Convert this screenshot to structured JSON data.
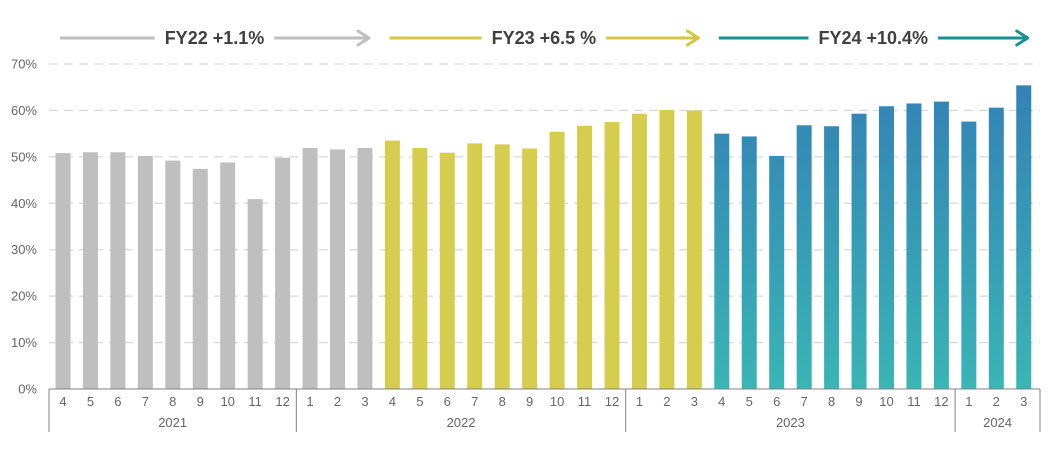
{
  "chart_data": {
    "type": "bar",
    "ylim": [
      0,
      70
    ],
    "yticks": [
      "0%",
      "10%",
      "20%",
      "30%",
      "40%",
      "50%",
      "60%",
      "70%"
    ],
    "grid": true,
    "categories": [
      "4",
      "5",
      "6",
      "7",
      "8",
      "9",
      "10",
      "11",
      "12",
      "1",
      "2",
      "3",
      "4",
      "5",
      "6",
      "7",
      "8",
      "9",
      "10",
      "11",
      "12",
      "1",
      "2",
      "3",
      "4",
      "5",
      "6",
      "7",
      "8",
      "9",
      "10",
      "11",
      "12",
      "1",
      "2",
      "3"
    ],
    "values": [
      50.8,
      51.0,
      51.0,
      50.2,
      49.2,
      47.4,
      48.8,
      40.9,
      49.8,
      51.9,
      51.6,
      51.9,
      53.5,
      51.9,
      50.9,
      52.9,
      52.7,
      51.8,
      55.4,
      56.7,
      57.5,
      59.3,
      60.1,
      60.0,
      55.0,
      54.4,
      50.2,
      56.8,
      56.6,
      59.3,
      60.9,
      61.5,
      61.9,
      57.6,
      60.6,
      65.4
    ],
    "color_groups": [
      "gray",
      "gray",
      "gray",
      "gray",
      "gray",
      "gray",
      "gray",
      "gray",
      "gray",
      "gray",
      "gray",
      "gray",
      "yellow",
      "yellow",
      "yellow",
      "yellow",
      "yellow",
      "yellow",
      "yellow",
      "yellow",
      "yellow",
      "yellow",
      "yellow",
      "yellow",
      "teal",
      "teal",
      "teal",
      "teal",
      "teal",
      "teal",
      "teal",
      "teal",
      "teal",
      "teal",
      "teal",
      "teal"
    ],
    "years": [
      {
        "label": "2021",
        "start": 0,
        "end": 8
      },
      {
        "label": "2022",
        "start": 9,
        "end": 20
      },
      {
        "label": "2023",
        "start": 21,
        "end": 32
      },
      {
        "label": "2024",
        "start": 33,
        "end": 35
      }
    ],
    "bands": [
      {
        "label": "FY22 +1.1%",
        "start": 0,
        "end": 11,
        "color": "#bfbfbf"
      },
      {
        "label": "FY23 +6.5 %",
        "start": 12,
        "end": 23,
        "color": "#d2c845"
      },
      {
        "label": "FY24 +10.4%",
        "start": 24,
        "end": 35,
        "color": "#18928f"
      }
    ],
    "colors": {
      "gray": "#bfbfbf",
      "yellow": "#d6cd4f",
      "teal_top": "#3382b5",
      "teal_bottom": "#3ab5b5",
      "grid": "#d9d9d9",
      "axis": "#808080"
    }
  }
}
